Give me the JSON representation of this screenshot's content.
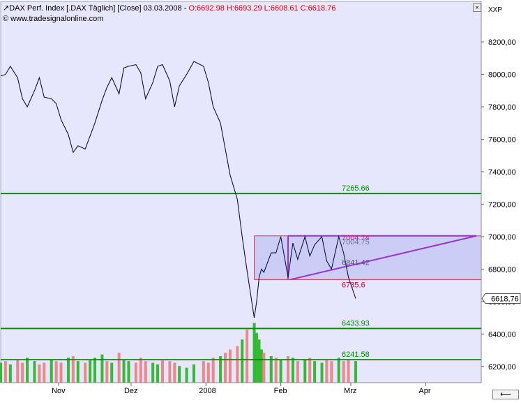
{
  "header": {
    "icon": "chart-line-icon",
    "title": "DAX Perf. Index [.DAX  Täglich] [Close] 03.03.2008 - ",
    "ohlc": "O:6692.98 H:6693.29 L:6608.61 C:6618.76",
    "credit": "© www.tradesignalonline.com",
    "close_button": "×",
    "axis_label": "XXP",
    "resize_glyph": "⟵"
  },
  "colors": {
    "plot_background": "#e6e6fc",
    "box_fill": "#c2c4f6",
    "box_border": "#e0304a",
    "triangle": "#9933cc",
    "horizontal_line": "#008800",
    "price_line": "#101040",
    "volume_up": "#33bb33",
    "volume_down": "#ee8888",
    "label_green": "#008800",
    "label_red": "#d00030",
    "label_pink": "#cc2277",
    "label_gray": "#555577"
  },
  "chart_data": {
    "type": "line",
    "title": "DAX Perf. Index [.DAX  Täglich] [Close]",
    "ylim": [
      6100,
      8450
    ],
    "xlim": [
      "2007-10-08",
      "2008-04-24"
    ],
    "y_ticks": [
      "6200,00",
      "6400,00",
      "6600,00",
      "6800,00",
      "7000,00",
      "7200,00",
      "7400,00",
      "7600,00",
      "7800,00",
      "8000,00",
      "8200,00"
    ],
    "y_tick_values": [
      6200,
      6400,
      6600,
      6800,
      7000,
      7200,
      7400,
      7600,
      7800,
      8000,
      8200
    ],
    "x_tick_labels": [
      "Nov",
      "Dez",
      "2008",
      "Feb",
      "Mrz",
      "Apr"
    ],
    "x_tick_dates": [
      "2007-11-01",
      "2007-12-01",
      "2008-01-01",
      "2008-02-01",
      "2008-03-01",
      "2008-04-01"
    ],
    "last_price_label": "6618,76",
    "last_price": 6618.76,
    "series": [
      {
        "x": [
          "2007-10-08",
          "2007-10-10",
          "2007-10-12",
          "2007-10-15",
          "2007-10-17",
          "2007-10-19",
          "2007-10-22",
          "2007-10-24",
          "2007-10-26",
          "2007-10-29",
          "2007-10-31",
          "2007-11-02",
          "2007-11-05",
          "2007-11-07",
          "2007-11-09",
          "2007-11-12",
          "2007-11-14",
          "2007-11-16",
          "2007-11-19",
          "2007-11-21",
          "2007-11-23",
          "2007-11-26",
          "2007-11-28",
          "2007-11-30",
          "2007-12-03",
          "2007-12-05",
          "2007-12-07",
          "2007-12-10",
          "2007-12-12",
          "2007-12-14",
          "2007-12-17",
          "2007-12-19",
          "2007-12-21",
          "2007-12-24",
          "2007-12-27",
          "2007-12-31",
          "2008-01-02",
          "2008-01-04",
          "2008-01-07",
          "2008-01-09",
          "2008-01-11",
          "2008-01-14",
          "2008-01-16",
          "2008-01-18",
          "2008-01-21",
          "2008-01-22",
          "2008-01-23",
          "2008-01-24",
          "2008-01-25",
          "2008-01-28",
          "2008-01-30",
          "2008-02-01",
          "2008-02-04",
          "2008-02-06",
          "2008-02-08",
          "2008-02-11",
          "2008-02-13",
          "2008-02-15",
          "2008-02-18",
          "2008-02-20",
          "2008-02-22",
          "2008-02-25",
          "2008-02-27",
          "2008-02-29",
          "2008-03-03"
        ],
        "values": [
          7990,
          8000,
          8050,
          7980,
          7850,
          7800,
          7900,
          7980,
          7860,
          7850,
          7820,
          7720,
          7630,
          7520,
          7560,
          7540,
          7620,
          7700,
          7840,
          7920,
          7980,
          7880,
          8040,
          8050,
          8060,
          8010,
          7850,
          7950,
          8050,
          8060,
          7960,
          7800,
          7930,
          8000,
          8080,
          8050,
          7950,
          7800,
          7700,
          7540,
          7380,
          7230,
          7000,
          6790,
          6500,
          6600,
          6750,
          6800,
          6780,
          6900,
          6900,
          7000,
          6750,
          6960,
          6860,
          7000,
          6880,
          6950,
          7000,
          6850,
          6800,
          7000,
          6900,
          6750,
          6618.76
        ]
      }
    ],
    "volume": {
      "ylim": [
        0,
        4
      ],
      "note": "relative daily volume, colour indicates up/down day",
      "values": [
        1.2,
        1.3,
        1.1,
        1.4,
        1.2,
        1.5,
        1.3,
        1.1,
        1.2,
        1.4,
        1.3,
        1.2,
        1.5,
        1.6,
        1.3,
        1.2,
        1.4,
        1.5,
        1.7,
        1.3,
        1.2,
        1.8,
        1.4,
        1.3,
        1.2,
        1.5,
        1.3,
        1.2,
        1.1,
        1.4,
        1.3,
        1.2,
        1.0,
        0.9,
        1.1,
        1.3,
        1.2,
        1.5,
        1.6,
        1.8,
        2.0,
        2.2,
        2.6,
        3.2,
        3.6,
        3.0,
        2.6,
        2.0,
        1.8,
        1.6,
        1.5,
        1.4,
        1.6,
        1.5,
        1.3,
        1.4,
        1.5,
        1.3,
        1.2,
        1.4,
        1.3,
        1.5,
        1.3,
        1.4,
        1.3
      ],
      "up": [
        1,
        0,
        1,
        0,
        0,
        1,
        1,
        0,
        0,
        1,
        0,
        0,
        1,
        0,
        1,
        0,
        1,
        1,
        1,
        0,
        1,
        0,
        1,
        1,
        0,
        0,
        0,
        1,
        1,
        0,
        0,
        0,
        1,
        1,
        1,
        0,
        0,
        0,
        1,
        0,
        0,
        0,
        1,
        0,
        1,
        1,
        1,
        1,
        0,
        1,
        0,
        1,
        0,
        1,
        0,
        1,
        0,
        1,
        1,
        0,
        0,
        1,
        0,
        0,
        1
      ]
    },
    "annotations": {
      "horizontal_levels": [
        {
          "value": 7265.66,
          "label": "7265.66"
        },
        {
          "value": 6433.93,
          "label": "6433.93"
        },
        {
          "value": 6241.58,
          "label": "6241.58"
        }
      ],
      "range_box": {
        "x_start": "2008-01-21",
        "x_end": "2008-04-24",
        "y_low": 6735.6,
        "y_high": 7004.74,
        "label_high": "7004.74",
        "label_low": "6735.6"
      },
      "triangle": {
        "label_mid": "6841.42",
        "label_upper": "7004.75",
        "upper_line": [
          [
            "2008-02-04",
            7004.75
          ],
          [
            "2008-04-22",
            7004.75
          ]
        ],
        "lower_line": [
          [
            "2008-02-05",
            6735.6
          ],
          [
            "2008-04-22",
            7004.75
          ]
        ],
        "left_side": [
          [
            "2008-02-04",
            6735.6
          ],
          [
            "2008-02-04",
            7004.75
          ]
        ]
      }
    }
  }
}
